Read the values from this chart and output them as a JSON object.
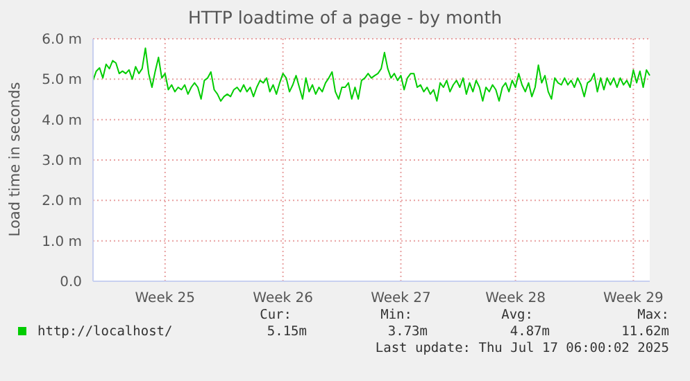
{
  "chart_data": {
    "type": "line",
    "title": "HTTP loadtime of a page - by month",
    "ylabel": "Load time in seconds",
    "categories": [
      null,
      null,
      null,
      null,
      null,
      null,
      null,
      null,
      null,
      null,
      null,
      null,
      null,
      null,
      null,
      null,
      null,
      null,
      null,
      null,
      null,
      null,
      "Week 25",
      null,
      null,
      null,
      null,
      null,
      null,
      null,
      null,
      null,
      null,
      null,
      null,
      null,
      null,
      null,
      null,
      null,
      null,
      null,
      null,
      null,
      null,
      null,
      null,
      null,
      null,
      null,
      null,
      null,
      null,
      null,
      null,
      null,
      null,
      null,
      "Week 26",
      null,
      null,
      null,
      null,
      null,
      null,
      null,
      null,
      null,
      null,
      null,
      null,
      null,
      null,
      null,
      null,
      null,
      null,
      null,
      null,
      null,
      null,
      null,
      null,
      null,
      null,
      null,
      null,
      null,
      null,
      null,
      null,
      null,
      null,
      null,
      "Week 27",
      null,
      null,
      null,
      null,
      null,
      null,
      null,
      null,
      null,
      null,
      null,
      null,
      null,
      null,
      null,
      null,
      null,
      null,
      null,
      null,
      null,
      null,
      null,
      null,
      null,
      null,
      null,
      null,
      null,
      null,
      null,
      null,
      null,
      null,
      "Week 28",
      null,
      null,
      null,
      null,
      null,
      null,
      null,
      null,
      null,
      null,
      null,
      null,
      null,
      null,
      null,
      null,
      null,
      null,
      null,
      null,
      null,
      null,
      null,
      null,
      null,
      null,
      null,
      null,
      null,
      null,
      null,
      null,
      null,
      null,
      null,
      "Week 29",
      null,
      null,
      null,
      null,
      null
    ],
    "series": [
      {
        "name": "http://localhost/",
        "color": "#00cc00",
        "values": [
          4.97,
          5.2,
          5.28,
          5.03,
          5.37,
          5.26,
          5.46,
          5.4,
          5.14,
          5.2,
          5.14,
          5.23,
          5.0,
          5.31,
          5.14,
          5.26,
          5.77,
          5.14,
          4.8,
          5.2,
          5.54,
          5.03,
          5.14,
          4.74,
          4.86,
          4.69,
          4.8,
          4.74,
          4.86,
          4.63,
          4.8,
          4.91,
          4.8,
          4.51,
          4.97,
          5.03,
          5.18,
          4.74,
          4.63,
          4.46,
          4.57,
          4.63,
          4.57,
          4.74,
          4.8,
          4.69,
          4.86,
          4.69,
          4.8,
          4.57,
          4.8,
          4.97,
          4.91,
          5.03,
          4.69,
          4.86,
          4.63,
          4.91,
          5.14,
          5.03,
          4.69,
          4.86,
          5.09,
          4.8,
          4.51,
          5.03,
          4.69,
          4.86,
          4.63,
          4.8,
          4.69,
          4.91,
          5.03,
          5.18,
          4.69,
          4.51,
          4.8,
          4.8,
          4.91,
          4.51,
          4.8,
          4.51,
          4.97,
          5.03,
          5.14,
          5.03,
          5.09,
          5.14,
          5.26,
          5.66,
          5.26,
          5.03,
          5.14,
          4.97,
          5.09,
          4.74,
          5.03,
          5.14,
          5.14,
          4.8,
          4.86,
          4.69,
          4.8,
          4.63,
          4.74,
          4.46,
          4.91,
          4.8,
          4.97,
          4.69,
          4.86,
          4.97,
          4.8,
          5.03,
          4.63,
          4.91,
          4.69,
          4.97,
          4.8,
          4.46,
          4.8,
          4.69,
          4.86,
          4.74,
          4.46,
          4.8,
          4.91,
          4.69,
          4.97,
          4.8,
          5.14,
          4.86,
          4.69,
          4.91,
          4.57,
          4.8,
          5.35,
          4.91,
          5.09,
          4.69,
          4.51,
          5.03,
          4.91,
          4.86,
          5.03,
          4.86,
          4.97,
          4.8,
          5.03,
          4.86,
          4.57,
          4.91,
          4.97,
          5.14,
          4.69,
          5.03,
          4.74,
          5.03,
          4.86,
          5.03,
          4.8,
          5.03,
          4.86,
          4.97,
          4.8,
          5.23,
          4.91,
          5.2,
          4.8,
          5.23,
          5.09
        ]
      }
    ],
    "ylim": [
      0,
      6
    ],
    "yticks": [
      {
        "value": 0,
        "label": "0.0"
      },
      {
        "value": 1,
        "label": "1.0 m"
      },
      {
        "value": 2,
        "label": "2.0 m"
      },
      {
        "value": 3,
        "label": "3.0 m"
      },
      {
        "value": 4,
        "label": "4.0 m"
      },
      {
        "value": 5,
        "label": "5.0 m"
      },
      {
        "value": 6,
        "label": "6.0 m"
      }
    ],
    "grid": true,
    "legend": "bottom",
    "marker": "none",
    "line_style": "solid",
    "annotations": [
      "Cur:",
      "Min:",
      "Avg:",
      "Max:",
      "5.15m",
      "3.73m",
      "4.87m",
      "11.62m",
      "Last update: Thu Jul 17 06:00:02 2025"
    ]
  }
}
